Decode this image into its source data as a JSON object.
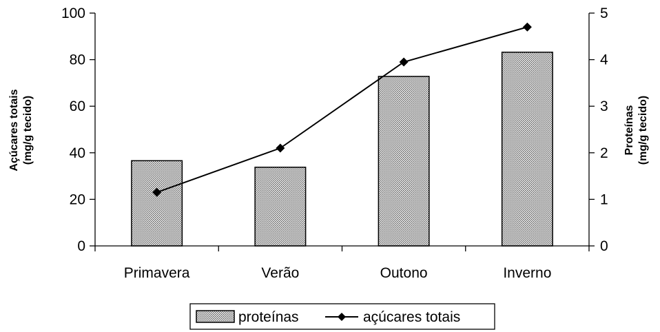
{
  "chart_data": {
    "type": "bar",
    "categories": [
      "Primavera",
      "Verão",
      "Outono",
      "Inverno"
    ],
    "left_axis": {
      "title_line1": "Açúcares totais",
      "title_line2": "(mg/g tecido)",
      "range": [
        0,
        100
      ],
      "ticks": [
        "0",
        "20",
        "40",
        "60",
        "80",
        "100"
      ]
    },
    "right_axis": {
      "title_line1": "Proteínas",
      "title_line2": "(mg/g tecido)",
      "range": [
        0,
        5
      ],
      "ticks": [
        "0",
        "1",
        "2",
        "3",
        "4",
        "5"
      ]
    },
    "series": [
      {
        "name": "proteínas",
        "kind": "bar",
        "axis": "right",
        "values": [
          1.83,
          1.69,
          3.64,
          4.16
        ]
      },
      {
        "name": "açúcares totais",
        "kind": "line",
        "marker": "diamond",
        "axis": "left",
        "values": [
          23,
          42,
          79,
          94
        ]
      }
    ],
    "legend": {
      "position": "bottom",
      "items": [
        "proteínas",
        "açúcares totais"
      ]
    },
    "grid": false,
    "colors": {
      "bar_fill": "#d4d4d4",
      "line": "#000000"
    }
  }
}
